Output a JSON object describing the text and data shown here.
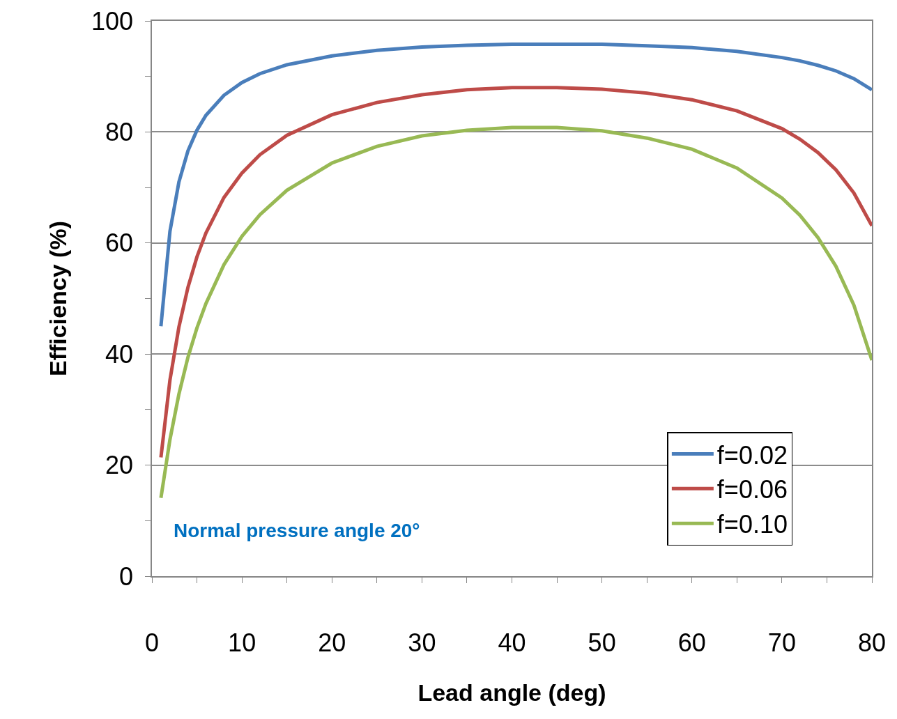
{
  "chart_data": {
    "type": "line",
    "xlabel": "Lead angle (deg)",
    "ylabel": "Efficiency (%)",
    "x": [
      1,
      2,
      3,
      4,
      5,
      6,
      8,
      10,
      12,
      15,
      20,
      25,
      30,
      35,
      40,
      45,
      50,
      55,
      60,
      65,
      70,
      72,
      74,
      76,
      78,
      80
    ],
    "series": [
      {
        "name": "f=0.02",
        "color": "#4a7ebb",
        "values": [
          45.0,
          62.1,
          71.0,
          76.6,
          80.3,
          83.0,
          86.6,
          88.9,
          90.5,
          92.1,
          93.7,
          94.7,
          95.3,
          95.6,
          95.8,
          95.8,
          95.8,
          95.5,
          95.2,
          94.5,
          93.4,
          92.8,
          92.0,
          91.0,
          89.6,
          87.6
        ]
      },
      {
        "name": "f=0.06",
        "color": "#be4b48",
        "values": [
          21.4,
          35.3,
          44.9,
          52.0,
          57.5,
          61.8,
          68.2,
          72.6,
          75.9,
          79.4,
          83.1,
          85.3,
          86.7,
          87.6,
          88.0,
          88.0,
          87.7,
          87.0,
          85.8,
          83.8,
          80.6,
          78.7,
          76.3,
          73.2,
          69.0,
          63.1
        ]
      },
      {
        "name": "f=0.10",
        "color": "#98b954",
        "values": [
          14.1,
          24.6,
          32.8,
          39.4,
          44.7,
          49.1,
          56.1,
          61.2,
          65.1,
          69.5,
          74.4,
          77.4,
          79.3,
          80.3,
          80.8,
          80.8,
          80.2,
          78.9,
          76.9,
          73.5,
          68.1,
          65.0,
          61.0,
          55.8,
          48.8,
          38.9
        ]
      }
    ],
    "xlim": [
      0,
      80
    ],
    "xticks": [
      0,
      10,
      20,
      30,
      40,
      50,
      60,
      70,
      80
    ],
    "ylim": [
      0,
      100
    ],
    "yticks": [
      0,
      20,
      40,
      60,
      80,
      100
    ],
    "grid": "y",
    "legend": "bottom right",
    "marker": "none",
    "line_style": "solid",
    "annotations": [
      "Normal pressure angle 20°"
    ]
  }
}
